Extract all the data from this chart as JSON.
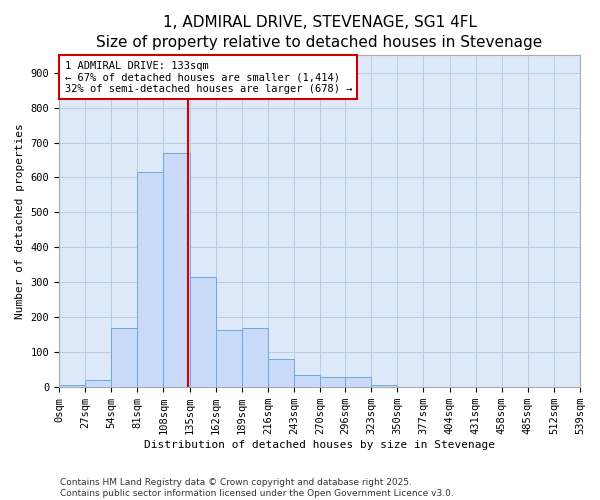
{
  "title": "1, ADMIRAL DRIVE, STEVENAGE, SG1 4FL",
  "subtitle": "Size of property relative to detached houses in Stevenage",
  "xlabel": "Distribution of detached houses by size in Stevenage",
  "ylabel": "Number of detached properties",
  "bin_edges": [
    0,
    27,
    54,
    81,
    108,
    135,
    162,
    189,
    216,
    243,
    270,
    296,
    323,
    350,
    377,
    404,
    431,
    458,
    485,
    512,
    539
  ],
  "bin_counts": [
    5,
    20,
    170,
    615,
    670,
    315,
    165,
    170,
    80,
    35,
    30,
    30,
    5,
    0,
    0,
    0,
    0,
    0,
    0,
    0
  ],
  "bar_color": "#c9daf8",
  "bar_edge_color": "#6fa8dc",
  "vline_x": 133,
  "vline_color": "#cc0000",
  "annotation_text": "1 ADMIRAL DRIVE: 133sqm\n← 67% of detached houses are smaller (1,414)\n32% of semi-detached houses are larger (678) →",
  "annotation_box_color": "#ffffff",
  "annotation_box_edge": "#cc0000",
  "annotation_fontsize": 7.5,
  "title_fontsize": 11,
  "subtitle_fontsize": 9,
  "xlabel_fontsize": 8,
  "ylabel_fontsize": 8,
  "tick_fontsize": 7.5,
  "yticks": [
    0,
    100,
    200,
    300,
    400,
    500,
    600,
    700,
    800,
    900
  ],
  "ylim": [
    0,
    950
  ],
  "xlim": [
    0,
    539
  ],
  "background_color": "#ffffff",
  "plot_bg_color": "#dde8f8",
  "grid_color": "#b8cce4",
  "footer_text": "Contains HM Land Registry data © Crown copyright and database right 2025.\nContains public sector information licensed under the Open Government Licence v3.0.",
  "footer_fontsize": 6.5
}
